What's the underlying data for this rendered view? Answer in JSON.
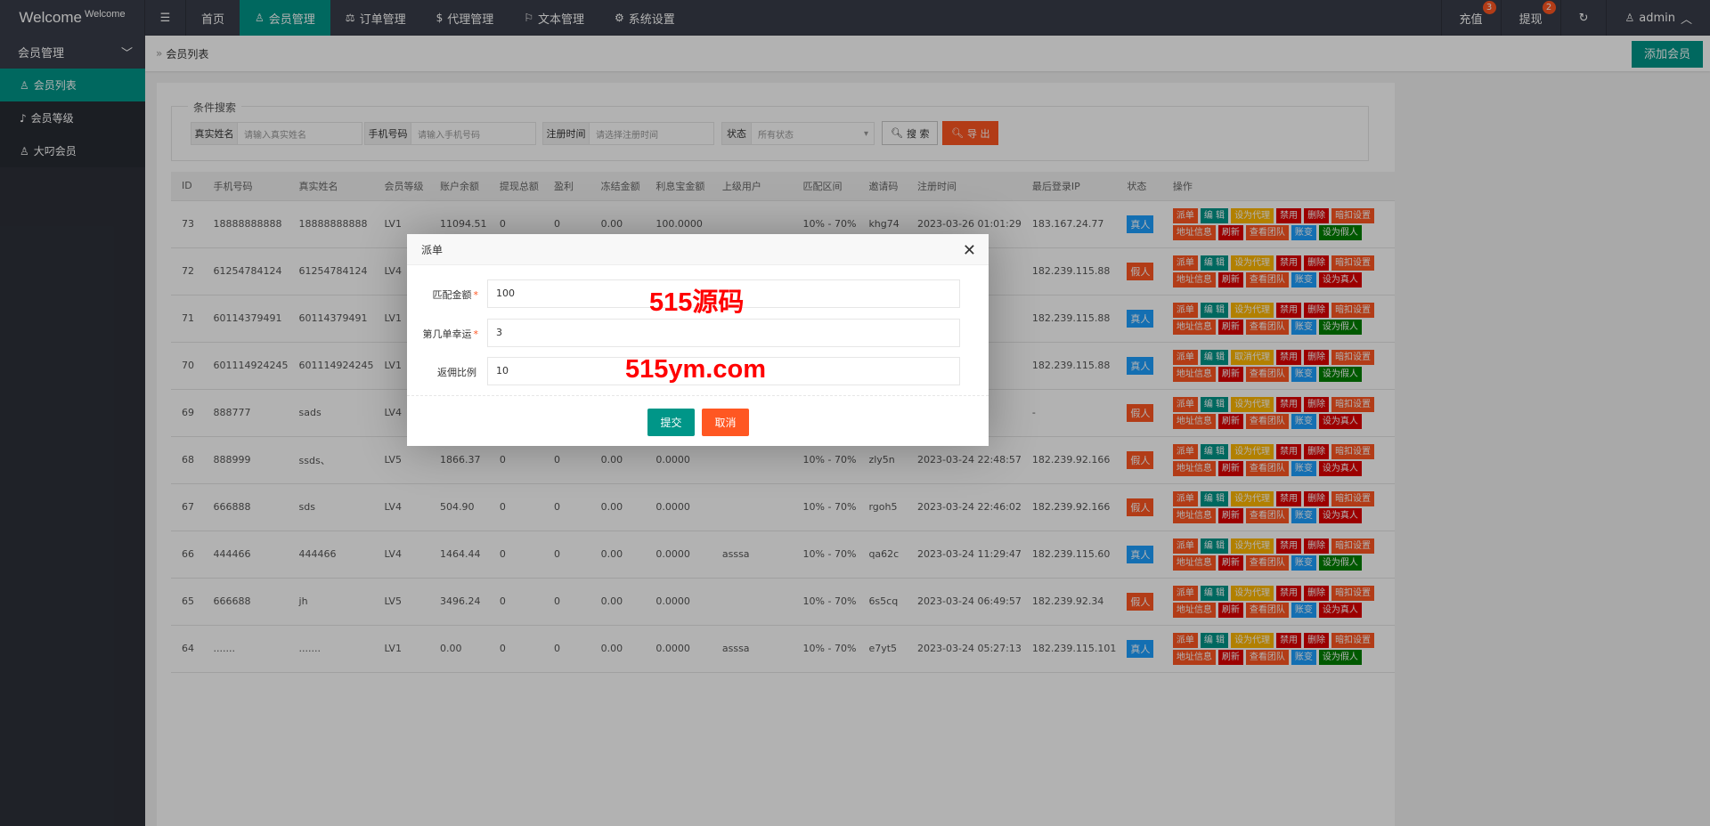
{
  "header": {
    "logo": "Welcome",
    "logo_sup": "Welcome",
    "nav": [
      {
        "label": "首页",
        "icon": ""
      },
      {
        "label": "会员管理",
        "icon": "user-icon"
      },
      {
        "label": "订单管理",
        "icon": "scale-icon"
      },
      {
        "label": "代理管理",
        "icon": "dollar-icon"
      },
      {
        "label": "文本管理",
        "icon": "flag-icon"
      },
      {
        "label": "系统设置",
        "icon": "gear-icon"
      }
    ],
    "recharge": "充值",
    "recharge_badge": "3",
    "withdraw": "提现",
    "withdraw_badge": "2",
    "user": "admin"
  },
  "sidebar": {
    "group": "会员管理",
    "items": [
      {
        "label": "会员列表"
      },
      {
        "label": "会员等级"
      },
      {
        "label": "大叼会员"
      }
    ]
  },
  "breadcrumb": "会员列表",
  "add_button": "添加会员",
  "search": {
    "legend": "条件搜索",
    "fields": [
      {
        "label": "真实姓名",
        "placeholder": "请输入真实姓名"
      },
      {
        "label": "手机号码",
        "placeholder": "请输入手机号码"
      },
      {
        "label": "注册时间",
        "placeholder": "请选择注册时间"
      },
      {
        "label": "状态",
        "placeholder": "所有状态"
      }
    ],
    "search_btn": "搜 索",
    "export_btn": "导 出"
  },
  "table": {
    "headers": [
      "ID",
      "手机号码",
      "真实姓名",
      "会员等级",
      "账户余额",
      "提现总额",
      "盈利",
      "冻结金额",
      "利息宝金额",
      "上级用户",
      "匹配区间",
      "邀请码",
      "注册时间",
      "最后登录IP",
      "状态",
      "操作"
    ],
    "rows": [
      [
        "73",
        "18888888888",
        "18888888888",
        "LV1",
        "11094.51",
        "0",
        "0",
        "0.00",
        "100.0000",
        "",
        "10% - 70%",
        "khg74",
        "2023-03-26 01:01:29",
        "183.167.24.77",
        "真人"
      ],
      [
        "72",
        "61254784124",
        "61254784124",
        "LV4",
        "",
        "",
        "",
        "",
        "",
        "",
        "",
        "",
        "",
        "182.239.115.88",
        "假人"
      ],
      [
        "71",
        "60114379491",
        "60114379491",
        "LV1",
        "",
        "",
        "",
        "",
        "",
        "",
        "",
        "",
        "",
        "182.239.115.88",
        "真人"
      ],
      [
        "70",
        "601114924245",
        "601114924245",
        "LV1",
        "",
        "",
        "",
        "",
        "",
        "",
        "",
        "",
        "",
        "182.239.115.88",
        "真人"
      ],
      [
        "69",
        "888777",
        "sads",
        "LV4",
        "",
        "",
        "",
        "",
        "",
        "",
        "",
        "",
        "",
        "-",
        "假人"
      ],
      [
        "68",
        "888999",
        "ssds、",
        "LV5",
        "1866.37",
        "0",
        "0",
        "0.00",
        "0.0000",
        "",
        "10% - 70%",
        "zly5n",
        "2023-03-24 22:48:57",
        "182.239.92.166",
        "假人"
      ],
      [
        "67",
        "666888",
        "sds",
        "LV4",
        "504.90",
        "0",
        "0",
        "0.00",
        "0.0000",
        "",
        "10% - 70%",
        "rgoh5",
        "2023-03-24 22:46:02",
        "182.239.92.166",
        "假人"
      ],
      [
        "66",
        "444466",
        "444466",
        "LV4",
        "1464.44",
        "0",
        "0",
        "0.00",
        "0.0000",
        "asssa",
        "10% - 70%",
        "qa62c",
        "2023-03-24 11:29:47",
        "182.239.115.60",
        "真人"
      ],
      [
        "65",
        "666688",
        "jh",
        "LV5",
        "3496.24",
        "0",
        "0",
        "0.00",
        "0.0000",
        "",
        "10% - 70%",
        "6s5cq",
        "2023-03-24 06:49:57",
        "182.239.92.34",
        "假人"
      ],
      [
        "64",
        ".......",
        ".......",
        "LV1",
        "0.00",
        "0",
        "0",
        "0.00",
        "0.0000",
        "asssa",
        "10% - 70%",
        "e7yt5",
        "2023-03-24 05:27:13",
        "182.239.115.101",
        "真人"
      ]
    ],
    "agent_labels": [
      "设为代理",
      "设为代理",
      "设为代理",
      "取消代理",
      "设为代理",
      "设为代理",
      "设为代理",
      "设为代理",
      "设为代理",
      "设为代理"
    ],
    "actions": {
      "dispatch": "派单",
      "edit": "编 辑",
      "ban": "禁用",
      "delete": "删除",
      "deduct": "暗扣设置",
      "address": "地址信息",
      "refresh": "刷新",
      "team": "查看团队",
      "ledger": "账变",
      "set_fake": "设为假人",
      "set_real": "设为真人"
    }
  },
  "colors": {
    "teal": "#009688",
    "orange": "#FF5722",
    "yellow": "#FFB800",
    "red": "#e00000",
    "blue": "#1E9FFF",
    "green": "#008000",
    "real": "#1E9FFF",
    "fake": "#FF5722"
  },
  "modal": {
    "title": "派单",
    "fields": [
      {
        "label": "匹配金额",
        "value": "100",
        "required": true
      },
      {
        "label": "第几单幸运",
        "value": "3",
        "required": true
      },
      {
        "label": "返佣比例",
        "value": "10",
        "required": false
      }
    ],
    "submit": "提交",
    "cancel": "取消",
    "watermark1": "515源码",
    "watermark2": "515ym.com"
  }
}
